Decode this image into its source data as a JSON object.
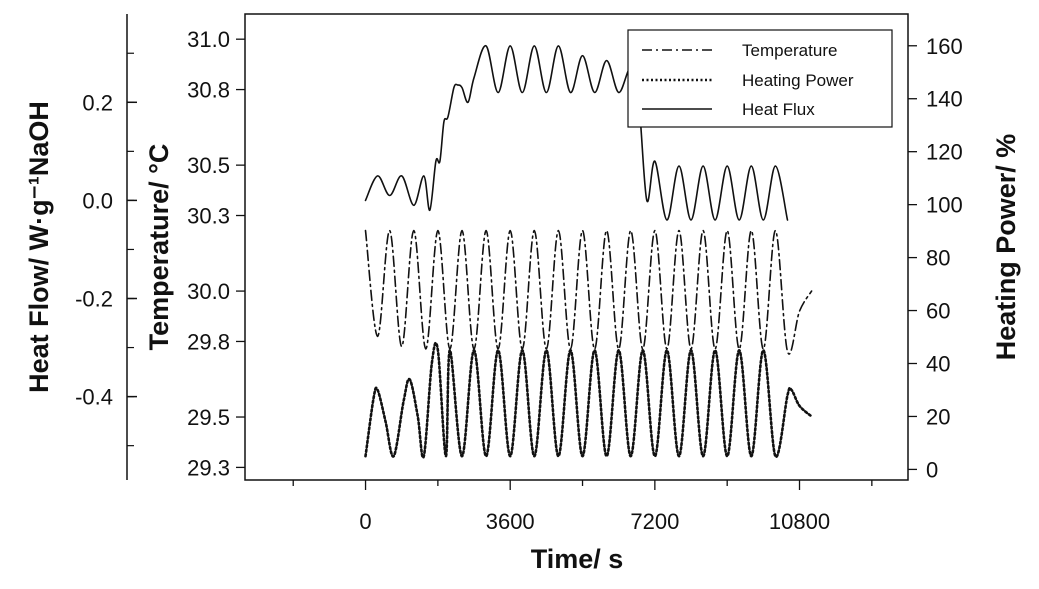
{
  "chart_data": {
    "type": "line",
    "title": "",
    "xlabel": "Time/ s",
    "ylabel_left_outer": "Heat Flow/ W·g⁻¹NaOH",
    "ylabel_left_inner": "Temperature/ °C",
    "ylabel_right": "Heating Power/ %",
    "xlim": [
      -3000,
      13500
    ],
    "x_ticks": [
      0,
      3600,
      7200,
      10800
    ],
    "x_tick_labels": [
      "0",
      "3600",
      "7200",
      "10800"
    ],
    "heat_flow_axis": {
      "lim": [
        -0.57,
        0.38
      ],
      "ticks": [
        0.2,
        0.0,
        -0.2,
        -0.4
      ],
      "tick_labels": [
        "0.2",
        "0.0",
        "-0.2",
        "-0.4"
      ]
    },
    "temperature_axis": {
      "lim": [
        29.25,
        31.1
      ],
      "ticks": [
        31.0,
        30.8,
        30.5,
        30.3,
        30.0,
        29.8,
        29.5,
        29.3
      ],
      "tick_labels": [
        "31.0",
        "30.8",
        "30.5",
        "30.3",
        "30.0",
        "29.8",
        "29.5",
        "29.3"
      ]
    },
    "power_axis": {
      "lim": [
        -4,
        172
      ],
      "ticks": [
        160,
        140,
        120,
        100,
        80,
        60,
        40,
        20,
        0
      ],
      "tick_labels": [
        "160",
        "140",
        "120",
        "100",
        "80",
        "60",
        "40",
        "20",
        "0"
      ]
    },
    "legend": {
      "position": "top-right",
      "entries": [
        "Temperature",
        "Heating Power",
        "Heat Flux"
      ]
    },
    "series": [
      {
        "name": "Temperature",
        "axis": "temperature",
        "style": "dash-dot",
        "period_s": 600,
        "points": [
          [
            0,
            30.24
          ],
          [
            300,
            29.82
          ],
          [
            600,
            30.24
          ],
          [
            900,
            29.78
          ],
          [
            1200,
            30.24
          ],
          [
            1500,
            29.77
          ],
          [
            1800,
            30.24
          ],
          [
            2100,
            29.77
          ],
          [
            2400,
            30.24
          ],
          [
            2700,
            29.77
          ],
          [
            3000,
            30.24
          ],
          [
            3300,
            29.77
          ],
          [
            3600,
            30.24
          ],
          [
            3900,
            29.77
          ],
          [
            4200,
            30.24
          ],
          [
            4500,
            29.77
          ],
          [
            4800,
            30.24
          ],
          [
            5100,
            29.77
          ],
          [
            5400,
            30.24
          ],
          [
            5700,
            29.77
          ],
          [
            6000,
            30.24
          ],
          [
            6300,
            29.77
          ],
          [
            6600,
            30.24
          ],
          [
            6900,
            29.77
          ],
          [
            7200,
            30.24
          ],
          [
            7500,
            29.77
          ],
          [
            7800,
            30.24
          ],
          [
            8100,
            29.77
          ],
          [
            8400,
            30.24
          ],
          [
            8700,
            29.77
          ],
          [
            9000,
            30.24
          ],
          [
            9300,
            29.77
          ],
          [
            9600,
            30.24
          ],
          [
            9900,
            29.77
          ],
          [
            10200,
            30.24
          ],
          [
            10500,
            29.76
          ],
          [
            10800,
            29.92
          ],
          [
            11100,
            30.0
          ]
        ]
      },
      {
        "name": "Heating Power",
        "axis": "power",
        "style": "dotted",
        "points": [
          [
            0,
            5
          ],
          [
            200,
            27
          ],
          [
            300,
            30
          ],
          [
            500,
            18
          ],
          [
            700,
            5
          ],
          [
            950,
            26
          ],
          [
            1100,
            34
          ],
          [
            1300,
            20
          ],
          [
            1450,
            5
          ],
          [
            1650,
            40
          ],
          [
            1800,
            45
          ],
          [
            2000,
            5
          ],
          [
            2100,
            45
          ],
          [
            2400,
            5
          ],
          [
            2700,
            45
          ],
          [
            3000,
            5
          ],
          [
            3300,
            45
          ],
          [
            3600,
            5
          ],
          [
            3900,
            45
          ],
          [
            4200,
            5
          ],
          [
            4500,
            45
          ],
          [
            4800,
            5
          ],
          [
            5100,
            45
          ],
          [
            5400,
            5
          ],
          [
            5700,
            45
          ],
          [
            6000,
            5
          ],
          [
            6300,
            45
          ],
          [
            6600,
            5
          ],
          [
            6900,
            45
          ],
          [
            7200,
            5
          ],
          [
            7500,
            45
          ],
          [
            7800,
            5
          ],
          [
            8100,
            45
          ],
          [
            8400,
            5
          ],
          [
            8700,
            45
          ],
          [
            9000,
            5
          ],
          [
            9300,
            45
          ],
          [
            9600,
            5
          ],
          [
            9900,
            45
          ],
          [
            10200,
            5
          ],
          [
            10500,
            28
          ],
          [
            10600,
            30
          ],
          [
            10800,
            24
          ],
          [
            11100,
            20
          ]
        ]
      },
      {
        "name": "Heat Flux",
        "axis": "heat_flow",
        "style": "solid",
        "points": [
          [
            0,
            0.0
          ],
          [
            300,
            0.05
          ],
          [
            600,
            0.01
          ],
          [
            900,
            0.05
          ],
          [
            1200,
            -0.01
          ],
          [
            1450,
            0.05
          ],
          [
            1600,
            -0.02
          ],
          [
            1750,
            0.08
          ],
          [
            1850,
            0.08
          ],
          [
            1950,
            0.16
          ],
          [
            2050,
            0.17
          ],
          [
            2200,
            0.23
          ],
          [
            2300,
            0.235
          ],
          [
            2400,
            0.23
          ],
          [
            2550,
            0.2
          ],
          [
            2700,
            0.25
          ],
          [
            3000,
            0.315
          ],
          [
            3300,
            0.22
          ],
          [
            3600,
            0.315
          ],
          [
            3900,
            0.22
          ],
          [
            4200,
            0.315
          ],
          [
            4500,
            0.22
          ],
          [
            4800,
            0.315
          ],
          [
            5100,
            0.22
          ],
          [
            5400,
            0.295
          ],
          [
            5700,
            0.22
          ],
          [
            6000,
            0.285
          ],
          [
            6300,
            0.22
          ],
          [
            6600,
            0.27
          ],
          [
            6800,
            0.2
          ],
          [
            7000,
            0.0
          ],
          [
            7200,
            0.08
          ],
          [
            7500,
            -0.04
          ],
          [
            7800,
            0.07
          ],
          [
            8100,
            -0.04
          ],
          [
            8400,
            0.07
          ],
          [
            8700,
            -0.04
          ],
          [
            9000,
            0.07
          ],
          [
            9300,
            -0.04
          ],
          [
            9600,
            0.07
          ],
          [
            9900,
            -0.04
          ],
          [
            10200,
            0.07
          ],
          [
            10500,
            -0.04
          ]
        ]
      }
    ]
  }
}
